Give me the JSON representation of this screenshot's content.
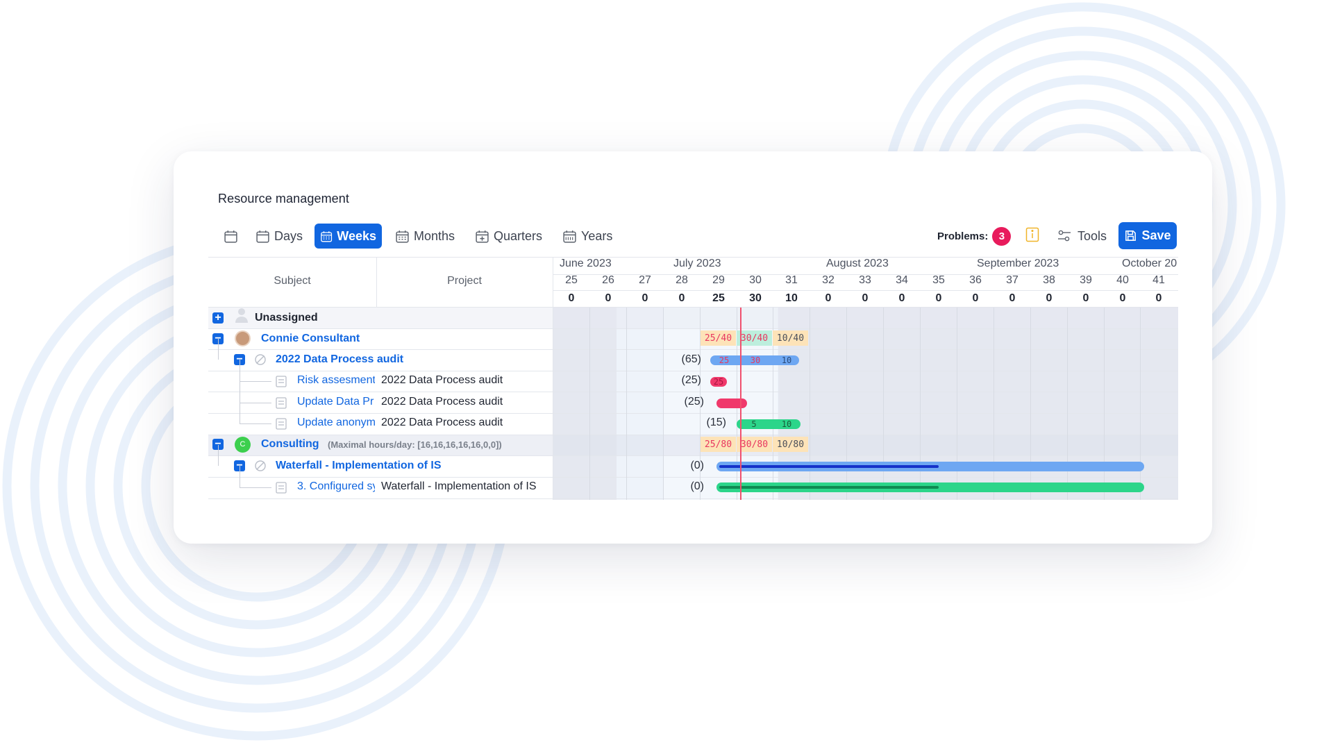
{
  "app": {
    "title": "Resource management"
  },
  "toolbar": {
    "today_label": "",
    "views": [
      {
        "label": "Days",
        "icon": "calendar-icon",
        "active": false
      },
      {
        "label": "Weeks",
        "icon": "calendar-grid-icon",
        "active": true
      },
      {
        "label": "Months",
        "icon": "calendar-grid-icon",
        "active": false
      },
      {
        "label": "Quarters",
        "icon": "calendar-plus-icon",
        "active": false
      },
      {
        "label": "Years",
        "icon": "calendar-365-icon",
        "active": false
      }
    ],
    "problems_label": "Problems:",
    "problems_count": "3",
    "tools_label": "Tools",
    "save_label": "Save"
  },
  "colors": {
    "accent": "#1166e0",
    "danger": "#e81b5c",
    "green": "#2cd58a",
    "warn_bg": "#fde3b8",
    "ok_bg": "#bdeedd"
  },
  "columns": {
    "subject": "Subject",
    "project": "Project"
  },
  "months": [
    "June 2023",
    "July 2023",
    "August 2023",
    "September 2023",
    "October 20"
  ],
  "weeks": [
    "25",
    "26",
    "27",
    "28",
    "29",
    "30",
    "31",
    "32",
    "33",
    "34",
    "35",
    "36",
    "37",
    "38",
    "39",
    "40",
    "41"
  ],
  "totals": [
    "0",
    "0",
    "0",
    "0",
    "25",
    "30",
    "10",
    "0",
    "0",
    "0",
    "0",
    "0",
    "0",
    "0",
    "0",
    "0",
    "0"
  ],
  "rows": [
    {
      "subject": "Unassigned",
      "icon": "user-placeholder-icon"
    },
    {
      "subject": "Connie Consultant",
      "icon": "avatar"
    },
    {
      "subject": "2022 Data Process audit",
      "icon": "no-entry-icon",
      "sum": "(65)"
    },
    {
      "subject": "Risk assesment",
      "project": "2022 Data Process audit",
      "sum": "(25)"
    },
    {
      "subject": "Update Data Pr",
      "project": "2022 Data Process audit",
      "sum": "(25)"
    },
    {
      "subject": "Update anonym",
      "project": "2022 Data Process audit",
      "sum": "(15)"
    },
    {
      "subject": "Consulting",
      "avatar_letter": "C",
      "note": "(Maximal hours/day: [16,16,16,16,16,0,0])"
    },
    {
      "subject": "Waterfall - Implementation of IS",
      "icon": "no-entry-icon",
      "sum": "(0)"
    },
    {
      "subject": "3. Configured sy",
      "project": "Waterfall - Implementation of IS",
      "sum": "(0)"
    }
  ],
  "allocations": {
    "connie": [
      "25/40",
      "30/40",
      "10/40"
    ],
    "consulting": [
      "25/80",
      "30/80",
      "10/80"
    ],
    "audit_bar": [
      "25",
      "30",
      "10"
    ],
    "risk_bar": [
      "25"
    ],
    "anonym_bar": [
      "5",
      "10"
    ]
  },
  "progress": {
    "waterfall": 0.52,
    "configured": 0.52
  }
}
